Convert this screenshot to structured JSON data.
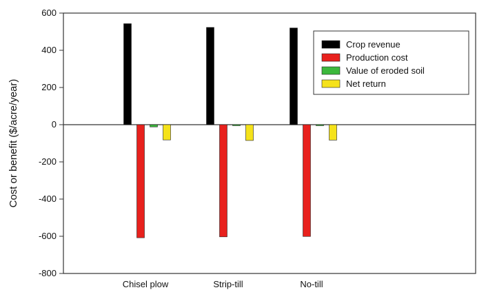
{
  "chart_data": {
    "type": "bar",
    "title": "",
    "xlabel": "",
    "ylabel": "Cost or benefit ($/acre/year)",
    "categories": [
      "Chisel plow",
      "Strip-till",
      "No-till"
    ],
    "series": [
      {
        "name": "Crop revenue",
        "color": "#000000",
        "values": [
          543,
          523,
          520
        ]
      },
      {
        "name": "Production cost",
        "color": "#e8211d",
        "values": [
          -608,
          -603,
          -601
        ]
      },
      {
        "name": "Value of eroded soil",
        "color": "#3cb83c",
        "values": [
          -12,
          -2,
          -3
        ]
      },
      {
        "name": "Net return",
        "color": "#f5e21a",
        "values": [
          -82,
          -85,
          -83
        ]
      }
    ],
    "ylim": [
      -800,
      600
    ],
    "yticks": [
      600,
      400,
      200,
      0,
      -200,
      -400,
      -600,
      -800
    ],
    "ytick_labels": [
      "600",
      "400",
      "200",
      "0",
      "-200",
      "-400",
      "-600",
      "-800"
    ],
    "grid": false,
    "legend_position": "top-right"
  }
}
